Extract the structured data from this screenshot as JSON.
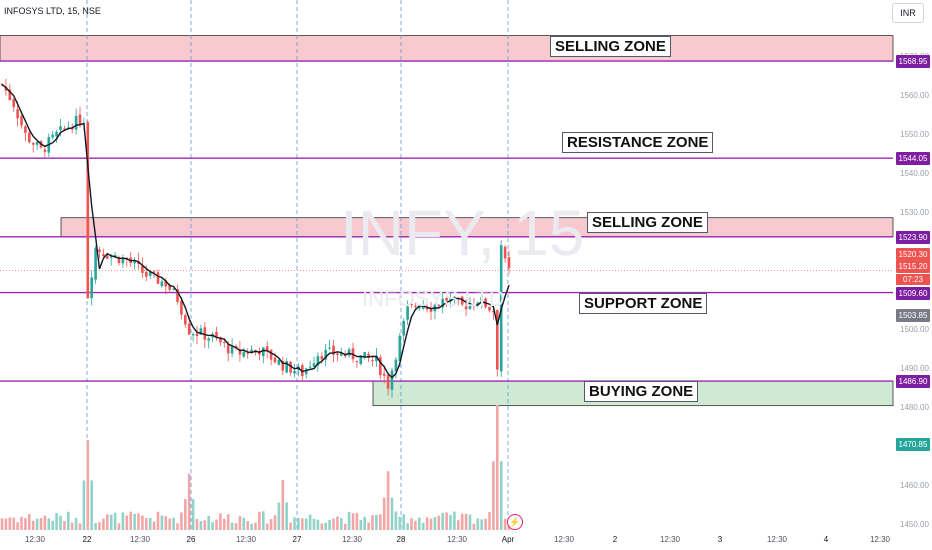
{
  "header": {
    "title": "INFOSYS LTD, 15, NSE",
    "currency": "INR"
  },
  "watermark": {
    "symbol": "INFY, 15",
    "subtitle": "INFOSYS LTD"
  },
  "zones": {
    "selling_top": {
      "label": "SELLING ZONE",
      "from": 1568.95,
      "to": 1575.5,
      "color": "#f8c9cf"
    },
    "resistance": {
      "label": "RESISTANCE ZONE",
      "level": 1544.05
    },
    "selling_mid": {
      "label": "SELLING ZONE",
      "from": 1523.9,
      "to": 1528.8,
      "color": "#f8c9cf"
    },
    "support": {
      "label": "SUPPORT ZONE",
      "level": 1509.6
    },
    "buying": {
      "label": "BUYING ZONE",
      "from": 1480.6,
      "to": 1486.9,
      "color": "#cfe9d2"
    }
  },
  "price_tags": [
    {
      "value": "1568.95",
      "color": "#7e1fa2"
    },
    {
      "value": "1544.05",
      "color": "#7e1fa2"
    },
    {
      "value": "1523.90",
      "color": "#7e1fa2"
    },
    {
      "value": "1520.30",
      "color": "#ef5350"
    },
    {
      "value": "1515.20",
      "color": "#ef5350"
    },
    {
      "value": "1509.60",
      "color": "#7e1fa2"
    },
    {
      "value": "1503.85",
      "color": "#787b86"
    },
    {
      "value": "1486.90",
      "color": "#7e1fa2"
    },
    {
      "value": "1470.85",
      "color": "#26a69a"
    }
  ],
  "timer": "07:23",
  "chart_data": {
    "type": "candlestick",
    "ylim": [
      1448,
      1582
    ],
    "y_ticks": [
      "1450.00",
      "1460.00",
      "1470.00",
      "1480.00",
      "1490.00",
      "1500.00",
      "1510.00",
      "1520.00",
      "1530.00",
      "1540.00",
      "1550.00",
      "1560.00",
      "1570.00"
    ],
    "x_ticks": [
      "12:30",
      "22",
      "12:30",
      "26",
      "12:30",
      "27",
      "12:30",
      "28",
      "12:30",
      "Apr",
      "12:30",
      "2",
      "12:30",
      "3",
      "12:30",
      "4",
      "12:30"
    ],
    "horizontal_lines": [
      1568.95,
      1544.05,
      1523.9,
      1509.6,
      1486.9
    ],
    "session_dividers": [
      "22",
      "26",
      "27",
      "28",
      "Apr"
    ],
    "price_anchors": [
      {
        "i": 0,
        "p": 1563
      },
      {
        "i": 3,
        "p": 1558
      },
      {
        "i": 6,
        "p": 1550
      },
      {
        "i": 10,
        "p": 1546
      },
      {
        "i": 14,
        "p": 1550
      },
      {
        "i": 18,
        "p": 1553
      },
      {
        "i": 21,
        "p": 1554
      },
      {
        "i": 22,
        "p": 1509
      },
      {
        "i": 24,
        "p": 1521
      },
      {
        "i": 28,
        "p": 1519
      },
      {
        "i": 32,
        "p": 1518
      },
      {
        "i": 37,
        "p": 1514
      },
      {
        "i": 42,
        "p": 1512
      },
      {
        "i": 45,
        "p": 1508
      },
      {
        "i": 48,
        "p": 1500
      },
      {
        "i": 54,
        "p": 1498
      },
      {
        "i": 60,
        "p": 1494
      },
      {
        "i": 66,
        "p": 1495
      },
      {
        "i": 72,
        "p": 1491
      },
      {
        "i": 77,
        "p": 1489
      },
      {
        "i": 81,
        "p": 1494
      },
      {
        "i": 86,
        "p": 1494
      },
      {
        "i": 92,
        "p": 1493
      },
      {
        "i": 96,
        "p": 1492
      },
      {
        "i": 99,
        "p": 1486
      },
      {
        "i": 101,
        "p": 1494
      },
      {
        "i": 104,
        "p": 1505
      },
      {
        "i": 107,
        "p": 1507
      },
      {
        "i": 110,
        "p": 1506
      },
      {
        "i": 114,
        "p": 1508
      },
      {
        "i": 118,
        "p": 1506
      },
      {
        "i": 122,
        "p": 1508
      },
      {
        "i": 126,
        "p": 1505
      },
      {
        "i": 127,
        "p": 1491
      },
      {
        "i": 128,
        "p": 1522
      },
      {
        "i": 129,
        "p": 1517
      },
      {
        "i": 130,
        "p": 1515
      }
    ],
    "volume_spikes": [
      {
        "i": 22,
        "v": 0.72
      },
      {
        "i": 48,
        "v": 0.45
      },
      {
        "i": 72,
        "v": 0.4
      },
      {
        "i": 99,
        "v": 0.47
      },
      {
        "i": 127,
        "v": 1.0
      }
    ]
  }
}
